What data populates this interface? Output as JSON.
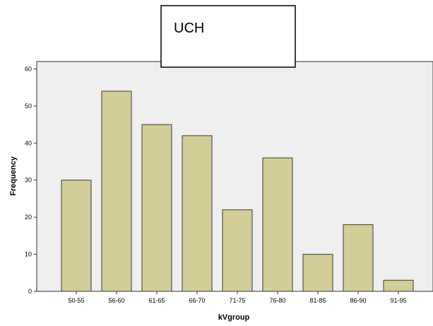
{
  "chart_data": {
    "type": "bar",
    "title": "UCH",
    "xlabel": "kVgroup",
    "ylabel": "Frequency",
    "categories": [
      "50-55",
      "56-60",
      "61-65",
      "66-70",
      "71-75",
      "76-80",
      "81-85",
      "86-90",
      "91-95"
    ],
    "values": [
      30,
      54,
      45,
      42,
      22,
      36,
      10,
      18,
      3
    ],
    "ylim": [
      0,
      62
    ],
    "yticks": [
      "0",
      "10",
      "20",
      "30",
      "40",
      "50",
      "60"
    ],
    "grid": false,
    "colors": {
      "bar_fill": "#d3cd97",
      "bar_stroke": "#3a3a3a",
      "plot_bg": "#efefef",
      "axis": "#333333"
    }
  }
}
